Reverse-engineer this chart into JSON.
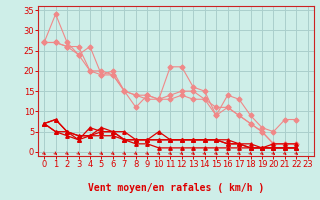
{
  "background_color": "#ceeee8",
  "grid_color": "#aacfcc",
  "xlabel": "Vent moyen/en rafales ( km/h )",
  "xlim": [
    -0.5,
    23.5
  ],
  "ylim": [
    -1,
    36
  ],
  "yticks": [
    0,
    5,
    10,
    15,
    20,
    25,
    30,
    35
  ],
  "xticks": [
    0,
    1,
    2,
    3,
    4,
    5,
    6,
    7,
    8,
    9,
    10,
    11,
    12,
    13,
    14,
    15,
    16,
    17,
    18,
    19,
    20,
    21,
    22,
    23
  ],
  "light_lines": [
    [
      27,
      34,
      27,
      24,
      26,
      19,
      20,
      15,
      11,
      14,
      13,
      21,
      21,
      16,
      15,
      9,
      14,
      13,
      9,
      6,
      5,
      8,
      8
    ],
    [
      27,
      27,
      26,
      24,
      20,
      19,
      19,
      15,
      14,
      14,
      13,
      14,
      15,
      15,
      13,
      9,
      11,
      9,
      7,
      5,
      2,
      2,
      2
    ],
    [
      27,
      27,
      26,
      26,
      20,
      20,
      19,
      15,
      14,
      13,
      13,
      13,
      14,
      13,
      13,
      11,
      11,
      9,
      7,
      5,
      2,
      2,
      2
    ]
  ],
  "dark_lines": [
    [
      7,
      8,
      5,
      3,
      6,
      5,
      5,
      3,
      3,
      3,
      5,
      3,
      3,
      3,
      3,
      3,
      3,
      2,
      2,
      1,
      2,
      2,
      2
    ],
    [
      7,
      8,
      5,
      4,
      4,
      6,
      5,
      5,
      3,
      3,
      3,
      3,
      3,
      3,
      3,
      3,
      2,
      2,
      1,
      1,
      1,
      1,
      1
    ],
    [
      7,
      5,
      5,
      4,
      4,
      5,
      5,
      3,
      3,
      3,
      3,
      3,
      3,
      3,
      3,
      3,
      2,
      2,
      1,
      1,
      1,
      1,
      1
    ],
    [
      7,
      5,
      4,
      3,
      4,
      4,
      4,
      3,
      2,
      2,
      1,
      1,
      1,
      1,
      1,
      1,
      1,
      1,
      1,
      1,
      1,
      1,
      1
    ]
  ],
  "light_color": "#f08888",
  "dark_color": "#dd0000",
  "marker_light": "D",
  "marker_dark": "^",
  "marker_size_light": 2.5,
  "marker_size_dark": 2.5,
  "linewidth_light": 0.8,
  "linewidth_dark": 0.9,
  "xlabel_fontsize": 7,
  "tick_fontsize": 6,
  "arrow_color": "#dd0000",
  "spine_color": "#cc2222"
}
